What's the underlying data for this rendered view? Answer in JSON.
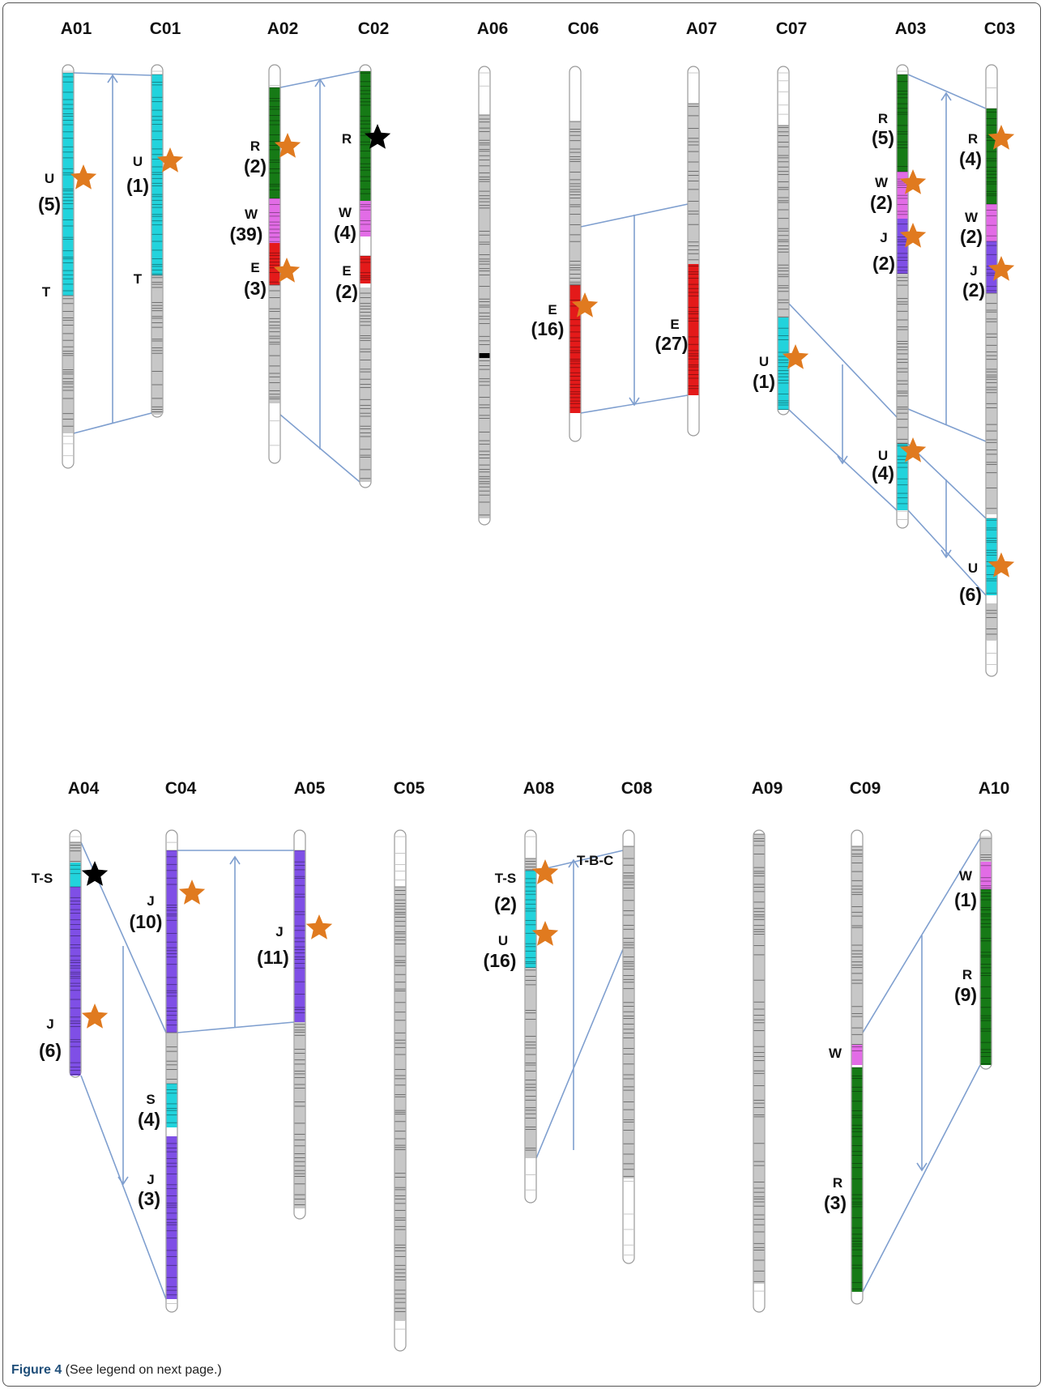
{
  "caption": {
    "figure_label": "Figure 4",
    "text": " (See legend on next page.)"
  },
  "colors": {
    "R": "#167a16",
    "W": "#e26ce6",
    "E": "#e41a1a",
    "U": "#22d3dc",
    "J": "#7f4fe6",
    "T-S": "#22d3dc",
    "S": "#22d3dc",
    "line": "#7f9fcf",
    "star_orange": "#e07a1f",
    "star_black": "#000000",
    "marker": "#5a5a5a"
  },
  "chromosome_labels": [
    "A01",
    "C01",
    "A02",
    "C02",
    "A06",
    "C06",
    "A07",
    "C07",
    "A03",
    "C03",
    "A04",
    "C04",
    "A05",
    "C05",
    "A08",
    "C08",
    "A09",
    "C09",
    "A10"
  ],
  "blocks": {
    "A01": {
      "U": {
        "letter": "U",
        "count": "(5)"
      },
      "T": {
        "letter": "T"
      }
    },
    "C01": {
      "U": {
        "letter": "U",
        "count": "(1)"
      },
      "T": {
        "letter": "T"
      }
    },
    "A02": {
      "R": {
        "letter": "R",
        "count": "(2)"
      },
      "W": {
        "letter": "W",
        "count": "(39)"
      },
      "E": {
        "letter": "E",
        "count": "(3)"
      }
    },
    "C02": {
      "R": {
        "letter": "R"
      },
      "W": {
        "letter": "W",
        "count": "(4)"
      },
      "E": {
        "letter": "E",
        "count": "(2)"
      }
    },
    "C06": {
      "E": {
        "letter": "E",
        "count": "(16)"
      }
    },
    "A07": {
      "E": {
        "letter": "E",
        "count": "(27)"
      }
    },
    "C07": {
      "U": {
        "letter": "U",
        "count": "(1)"
      }
    },
    "A03": {
      "R": {
        "letter": "R",
        "count": "(5)"
      },
      "W": {
        "letter": "W",
        "count": "(2)"
      },
      "J": {
        "letter": "J",
        "count": "(2)"
      },
      "U": {
        "letter": "U",
        "count": "(4)"
      }
    },
    "C03": {
      "R": {
        "letter": "R",
        "count": "(4)"
      },
      "W": {
        "letter": "W",
        "count": "(2)"
      },
      "J": {
        "letter": "J",
        "count": "(2)"
      },
      "U": {
        "letter": "U",
        "count": "(6)"
      }
    },
    "A04": {
      "TS": {
        "letter": "T-S"
      },
      "J": {
        "letter": "J",
        "count": "(6)"
      }
    },
    "C04": {
      "J1": {
        "letter": "J",
        "count": "(10)"
      },
      "S": {
        "letter": "S",
        "count": "(4)"
      },
      "J2": {
        "letter": "J",
        "count": "(3)"
      }
    },
    "A05": {
      "J": {
        "letter": "J",
        "count": "(11)"
      }
    },
    "A08": {
      "TS": {
        "letter": "T-S",
        "count": "(2)"
      },
      "U": {
        "letter": "U",
        "count": "(16)"
      }
    },
    "C08": {
      "TBC": {
        "letter": "T-B-C"
      }
    },
    "C09": {
      "W": {
        "letter": "W"
      },
      "R": {
        "letter": "R",
        "count": "(3)"
      }
    },
    "A10": {
      "W": {
        "letter": "W",
        "count": "(1)"
      },
      "R": {
        "letter": "R",
        "count": "(9)"
      }
    }
  }
}
